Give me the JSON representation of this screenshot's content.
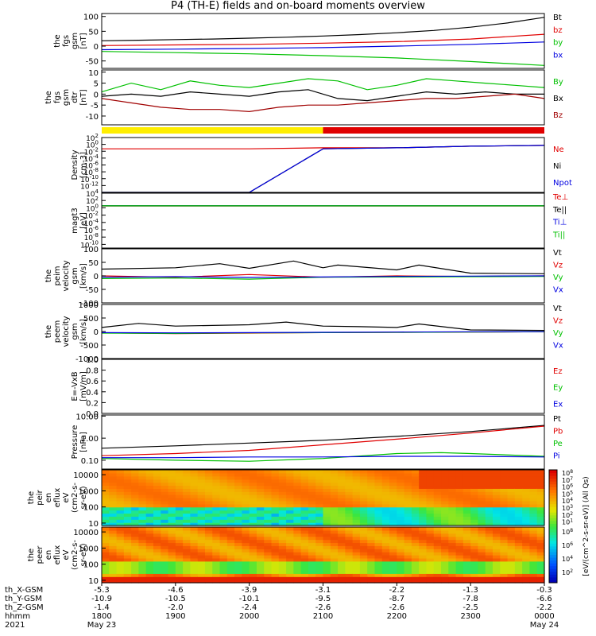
{
  "title": "P4 (TH-E) fields and on-board moments overview",
  "x_axis": {
    "tick_times": [
      "1800",
      "1900",
      "2000",
      "2100",
      "2200",
      "2300",
      "0000"
    ],
    "date_labels": [
      "May 23",
      "May 24"
    ],
    "year": "2021",
    "rows": [
      {
        "label": "th_X-GSM",
        "values": [
          "-5.3",
          "-4.6",
          "-3.9",
          "-3.1",
          "-2.2",
          "-1.3",
          "-0.3"
        ]
      },
      {
        "label": "th_Y-GSM",
        "values": [
          "-10.9",
          "-10.5",
          "-10.1",
          "-9.5",
          "-8.7",
          "-7.8",
          "-6.6"
        ]
      },
      {
        "label": "th_Z-GSM",
        "values": [
          "-1.4",
          "-2.0",
          "-2.4",
          "-2.6",
          "-2.6",
          "-2.5",
          "-2.2"
        ]
      },
      {
        "label": "hhmm",
        "values": []
      }
    ]
  },
  "colorbar": {
    "label": "[eV/(cm^2-s-sr-eV)] (All Qs)",
    "ticks_top": [
      "10^8",
      "10^7",
      "10^6",
      "10^5",
      "10^4",
      "10^3",
      "10^2",
      "10^1"
    ],
    "ticks_bottom": [
      "10^8",
      "10^6",
      "10^4",
      "10^2"
    ]
  },
  "chart_data": [
    {
      "type": "line",
      "id": "fgs_gsm",
      "ylabel": [
        "the",
        "fgs",
        "gsm",
        "[nT]"
      ],
      "ylim": [
        -75,
        110
      ],
      "yticks": [
        "100",
        "50",
        "0",
        "-50"
      ],
      "series": [
        {
          "name": "Bt",
          "color": "#000000",
          "x": [
            0,
            0.5,
            1.0,
            1.5,
            2.0,
            2.5,
            3.0,
            3.5,
            4.0,
            4.5,
            5.0,
            5.5,
            6.0
          ],
          "values": [
            18,
            20,
            22,
            24,
            27,
            30,
            34,
            39,
            45,
            53,
            64,
            78,
            97
          ]
        },
        {
          "name": "bz",
          "color": "#e00000",
          "x": [
            0,
            1.0,
            2.0,
            3.0,
            4.0,
            5.0,
            6.0
          ],
          "values": [
            2,
            4,
            6,
            10,
            15,
            24,
            40
          ]
        },
        {
          "name": "by",
          "color": "#00c000",
          "x": [
            0,
            1.0,
            2.0,
            3.0,
            4.0,
            5.0,
            6.0
          ],
          "values": [
            -18,
            -22,
            -26,
            -32,
            -40,
            -52,
            -65
          ]
        },
        {
          "name": "bx",
          "color": "#0000e0",
          "x": [
            0,
            1.0,
            2.0,
            3.0,
            4.0,
            5.0,
            6.0
          ],
          "values": [
            -12,
            -10,
            -8,
            -5,
            0,
            6,
            14
          ]
        }
      ]
    },
    {
      "type": "line",
      "id": "fgs_dsl",
      "ylabel": [
        "the",
        "fgs",
        "gsm",
        "dtr",
        "[nT]"
      ],
      "ylim": [
        -14,
        11
      ],
      "yticks": [
        "10",
        "5",
        "0",
        "-5",
        "-10"
      ],
      "series": [
        {
          "name": "By",
          "color": "#00c000",
          "x": [
            0,
            0.4,
            0.8,
            1.2,
            1.6,
            2.0,
            2.4,
            2.8,
            3.2,
            3.6,
            4.0,
            4.4,
            4.8,
            5.2,
            5.6,
            6.0
          ],
          "values": [
            1,
            5,
            2,
            6,
            4,
            3,
            5,
            7,
            6,
            2,
            4,
            7,
            6,
            5,
            4,
            3
          ]
        },
        {
          "name": "Bx",
          "color": "#000000",
          "x": [
            0,
            0.4,
            0.8,
            1.2,
            1.6,
            2.0,
            2.4,
            2.8,
            3.2,
            3.6,
            4.0,
            4.4,
            4.8,
            5.2,
            5.6,
            6.0
          ],
          "values": [
            -1,
            0,
            -1,
            1,
            0,
            -1,
            1,
            2,
            -2,
            -3,
            -1,
            1,
            0,
            1,
            0,
            0
          ]
        },
        {
          "name": "Bz",
          "color": "#a00000",
          "x": [
            0,
            0.4,
            0.8,
            1.2,
            1.6,
            2.0,
            2.4,
            2.8,
            3.2,
            3.6,
            4.0,
            4.4,
            4.8,
            5.2,
            5.6,
            6.0
          ],
          "values": [
            -2,
            -4,
            -6,
            -7,
            -7,
            -8,
            -6,
            -5,
            -5,
            -4,
            -3,
            -2,
            -2,
            -1,
            0,
            -2
          ]
        }
      ]
    },
    {
      "type": "line",
      "id": "density",
      "ylabel": [
        "Density",
        "[cm-3]"
      ],
      "log": true,
      "ylim": [
        -14,
        2
      ],
      "yticks": [
        "10^2",
        "10^0",
        "10^-2",
        "10^-4",
        "10^-6",
        "10^-8",
        "10^-10",
        "10^-12"
      ],
      "series": [
        {
          "name": "Ne",
          "color": "#e00000",
          "x": [
            0,
            1.0,
            2.0,
            3.0,
            4.0,
            5.0,
            6.0
          ],
          "values": [
            0.05,
            0.05,
            0.05,
            0.1,
            0.1,
            0.3,
            0.5
          ]
        },
        {
          "name": "Ni",
          "color": "#000000",
          "x": [
            0,
            1.0,
            2.0,
            3.0,
            4.0,
            5.0,
            6.0
          ],
          "values": [
            0,
            0,
            0,
            0.05,
            0.1,
            0.3,
            0.5
          ]
        },
        {
          "name": "Npot",
          "color": "#0000e0",
          "x": [
            0,
            1.0,
            2.0,
            3.0,
            4.0,
            5.0,
            6.0
          ],
          "values": [
            0,
            0,
            0,
            0.05,
            0.1,
            0.3,
            0.5
          ]
        }
      ]
    },
    {
      "type": "line",
      "id": "temperature",
      "ylabel": [
        "magt3",
        "[eV]"
      ],
      "log": true,
      "ylim": [
        -11,
        4
      ],
      "yticks": [
        "10^4",
        "10^2",
        "10^0",
        "10^-2",
        "10^-4",
        "10^-6",
        "10^-8",
        "10^-10"
      ],
      "series": [
        {
          "name": "Te⊥",
          "color": "#e00000",
          "x": [
            0,
            6.0
          ],
          "values": [
            3.3,
            3.3
          ]
        },
        {
          "name": "Te||",
          "color": "#000000",
          "x": [
            0,
            6.0
          ],
          "values": [
            3.4,
            3.4
          ]
        },
        {
          "name": "Ti⊥",
          "color": "#0000e0",
          "x": [
            0,
            6.0
          ],
          "values": [
            3.6,
            3.6
          ]
        },
        {
          "name": "Ti||",
          "color": "#00c000",
          "x": [
            0,
            6.0
          ],
          "values": [
            3.5,
            3.5
          ]
        }
      ]
    },
    {
      "type": "line",
      "id": "peim_velocity",
      "ylabel": [
        "the",
        "peim",
        "velocity",
        "gsm",
        "[km/s]"
      ],
      "ylim": [
        -100,
        100
      ],
      "yticks": [
        "100",
        "50",
        "0",
        "-50",
        "-100"
      ],
      "series": [
        {
          "name": "Vt",
          "color": "#000000",
          "x": [
            0,
            1.0,
            1.6,
            2.0,
            2.6,
            3.0,
            3.2,
            4.0,
            4.3,
            5.0,
            6.0
          ],
          "values": [
            25,
            30,
            45,
            28,
            55,
            30,
            40,
            22,
            40,
            10,
            8
          ]
        },
        {
          "name": "Vz",
          "color": "#e00000",
          "x": [
            0,
            1.0,
            2.0,
            3.0,
            4.0,
            5.0,
            6.0
          ],
          "values": [
            0,
            -5,
            5,
            -5,
            0,
            -2,
            0
          ]
        },
        {
          "name": "Vy",
          "color": "#00c000",
          "x": [
            0,
            1.0,
            2.0,
            3.0,
            4.0,
            5.0,
            6.0
          ],
          "values": [
            -10,
            -8,
            -12,
            -5,
            -4,
            -3,
            -2
          ]
        },
        {
          "name": "Vx",
          "color": "#0000e0",
          "x": [
            0,
            1.0,
            2.0,
            3.0,
            4.0,
            5.0,
            6.0
          ],
          "values": [
            -5,
            -3,
            -6,
            -4,
            -2,
            -1,
            0
          ]
        }
      ]
    },
    {
      "type": "line",
      "id": "peem_velocity",
      "ylabel": [
        "the",
        "peem",
        "velocity",
        "gsm",
        "[km/s]"
      ],
      "ylim": [
        -1000,
        1000
      ],
      "yticks": [
        "1000",
        "500",
        "0",
        "-500",
        "-1000"
      ],
      "series": [
        {
          "name": "Vt",
          "color": "#000000",
          "x": [
            0,
            0.5,
            1.0,
            2.0,
            2.5,
            3.0,
            3.5,
            4.0,
            4.3,
            5.0,
            6.0
          ],
          "values": [
            150,
            300,
            200,
            250,
            350,
            200,
            180,
            150,
            280,
            60,
            40
          ]
        },
        {
          "name": "Vz",
          "color": "#e00000",
          "x": [
            0,
            1.0,
            2.0,
            3.0,
            4.0,
            5.0,
            6.0
          ],
          "values": [
            -50,
            -80,
            -60,
            -40,
            -30,
            -20,
            -10
          ]
        },
        {
          "name": "Vy",
          "color": "#00c000",
          "x": [
            0,
            1.0,
            2.0,
            3.0,
            4.0,
            5.0,
            6.0
          ],
          "values": [
            -60,
            -70,
            -50,
            -40,
            -30,
            -20,
            -10
          ]
        },
        {
          "name": "Vx",
          "color": "#0000e0",
          "x": [
            0,
            1.0,
            2.0,
            3.0,
            4.0,
            5.0,
            6.0
          ],
          "values": [
            -40,
            -50,
            -40,
            -30,
            -20,
            -10,
            -5
          ]
        }
      ]
    },
    {
      "type": "line",
      "id": "efield",
      "ylabel": [
        "E=-VxB",
        "[mV/m]"
      ],
      "ylim": [
        0,
        1
      ],
      "yticks": [
        "1.0",
        "0.8",
        "0.6",
        "0.4",
        "0.2",
        "0.0"
      ],
      "series": [
        {
          "name": "Ez",
          "color": "#e00000",
          "x": [],
          "values": []
        },
        {
          "name": "Ey",
          "color": "#00c000",
          "x": [],
          "values": []
        },
        {
          "name": "Ex",
          "color": "#0000e0",
          "x": [],
          "values": []
        }
      ]
    },
    {
      "type": "line",
      "id": "pressure",
      "ylabel": [
        "Pressure",
        "[nPa]"
      ],
      "log": true,
      "ylim": [
        -1.4,
        1.05
      ],
      "yticks": [
        "10.00",
        "1.00",
        "0.10"
      ],
      "series": [
        {
          "name": "Pt",
          "color": "#000000",
          "x": [
            0,
            1.0,
            2.0,
            3.0,
            4.0,
            5.0,
            6.0
          ],
          "values": [
            0.35,
            0.45,
            0.6,
            0.8,
            1.2,
            2.0,
            3.8
          ]
        },
        {
          "name": "Pb",
          "color": "#e00000",
          "x": [
            0,
            1.0,
            2.0,
            3.0,
            4.0,
            5.0,
            6.0
          ],
          "values": [
            0.16,
            0.2,
            0.28,
            0.5,
            0.9,
            1.7,
            3.5
          ]
        },
        {
          "name": "Pe",
          "color": "#00c000",
          "x": [
            0,
            1.0,
            2.0,
            3.0,
            4.0,
            4.6,
            5.0,
            6.0
          ],
          "values": [
            0.12,
            0.1,
            0.09,
            0.12,
            0.2,
            0.22,
            0.2,
            0.15
          ]
        },
        {
          "name": "Pi",
          "color": "#0000e0",
          "x": [
            0,
            1.0,
            2.0,
            3.0,
            4.0,
            5.0,
            6.0
          ],
          "values": [
            0.13,
            0.13,
            0.14,
            0.14,
            0.15,
            0.15,
            0.14
          ]
        }
      ]
    },
    {
      "type": "heatmap",
      "id": "peir_spectrogram",
      "ylabel": [
        "the",
        "peir",
        "en",
        "eflux",
        "eV",
        "(cm2-s-",
        "sr-eV)"
      ],
      "log": true,
      "ylim": [
        0.85,
        4.3
      ],
      "yticks": [
        "10000",
        "1000",
        "100",
        "10"
      ]
    },
    {
      "type": "heatmap",
      "id": "peer_spectrogram",
      "ylabel": [
        "the",
        "peer",
        "en",
        "eflux",
        "eV",
        "(cm2-s-",
        "sr-eV)"
      ],
      "log": true,
      "ylim": [
        0.85,
        4.3
      ],
      "yticks": [
        "10000",
        "1000",
        "100",
        "10"
      ]
    }
  ]
}
